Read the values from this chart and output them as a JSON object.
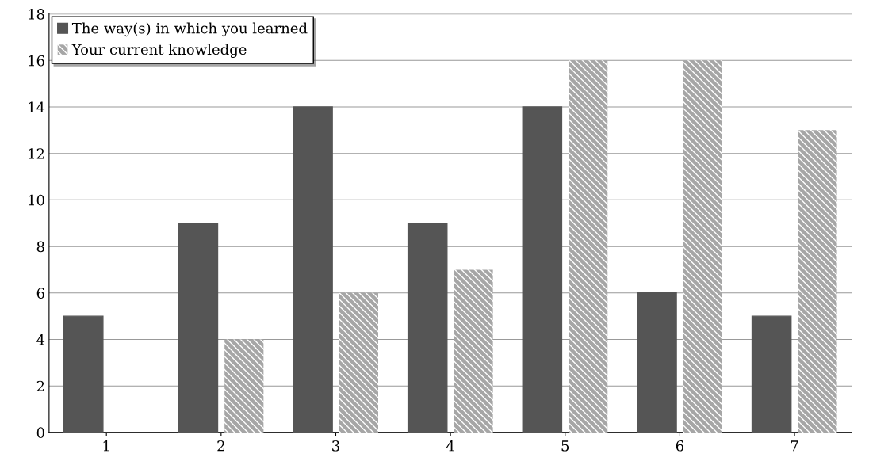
{
  "chart_data": {
    "type": "bar",
    "categories": [
      "1",
      "2",
      "3",
      "4",
      "5",
      "6",
      "7"
    ],
    "series": [
      {
        "name": "The way(s) in which you learned",
        "color": "#555555",
        "values": [
          5,
          9,
          14,
          9,
          14,
          6,
          5
        ]
      },
      {
        "name": "Your current knowledge",
        "color": "#a6a6a6",
        "values": [
          0,
          4,
          6,
          7,
          16,
          16,
          13
        ]
      }
    ],
    "ylim": [
      0,
      18
    ],
    "yticks": [
      0,
      2,
      4,
      6,
      8,
      10,
      12,
      14,
      16,
      18
    ],
    "grid": "y",
    "legend": "top left"
  }
}
